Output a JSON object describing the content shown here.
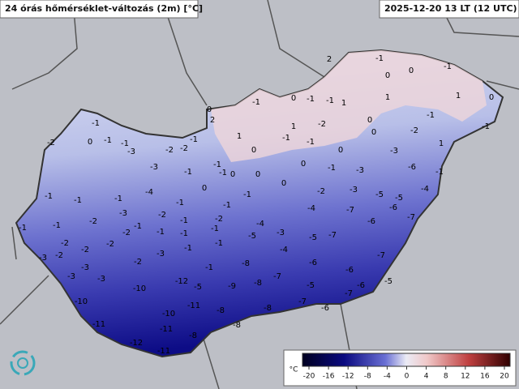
{
  "header": {
    "title": "24 órás hőmérséklet-változás (2m) [°C]",
    "timestamp": "2025-12-20 13 LT (12 UTC)"
  },
  "stations": [
    -1,
    0,
    -1,
    -2,
    -1,
    -3,
    -2,
    -2,
    -1,
    -3,
    -1,
    -1,
    -1,
    0,
    0,
    0,
    2,
    1,
    0,
    -1,
    0,
    -1,
    -1,
    1,
    2,
    -1,
    0,
    0,
    -1,
    1,
    1,
    0,
    -1,
    -1,
    0,
    0,
    -2,
    1,
    1,
    -2,
    -1,
    -1,
    0,
    -3,
    -6,
    -1,
    -3,
    -1,
    0,
    0,
    -1,
    -1,
    0,
    -1,
    -4,
    -1,
    -1,
    -1,
    -2,
    -3,
    -1,
    -2,
    -1,
    -2,
    -1,
    -4,
    -3,
    -4,
    -2,
    -3,
    -5,
    -5,
    -4,
    -7,
    -6,
    -6,
    -7,
    -7,
    -5,
    -4,
    -5,
    -1,
    -1,
    -1,
    -1,
    -2,
    -2,
    -2,
    -2,
    -3,
    -2,
    -1,
    -1,
    -3,
    -3,
    -3,
    -2,
    -3,
    -1,
    -8,
    -7,
    -6,
    -6,
    -7,
    -9,
    -8,
    -5,
    -6,
    -5,
    -7,
    -10,
    -12,
    -5,
    -10,
    -11,
    -10,
    -8,
    -8,
    -7,
    -6,
    -11,
    -11,
    -8,
    -8,
    -12,
    -11
  ],
  "colorbar": {
    "unit": "°C",
    "ticks": [
      -20,
      -16,
      -12,
      -8,
      -4,
      0,
      4,
      8,
      12,
      16,
      20
    ]
  }
}
